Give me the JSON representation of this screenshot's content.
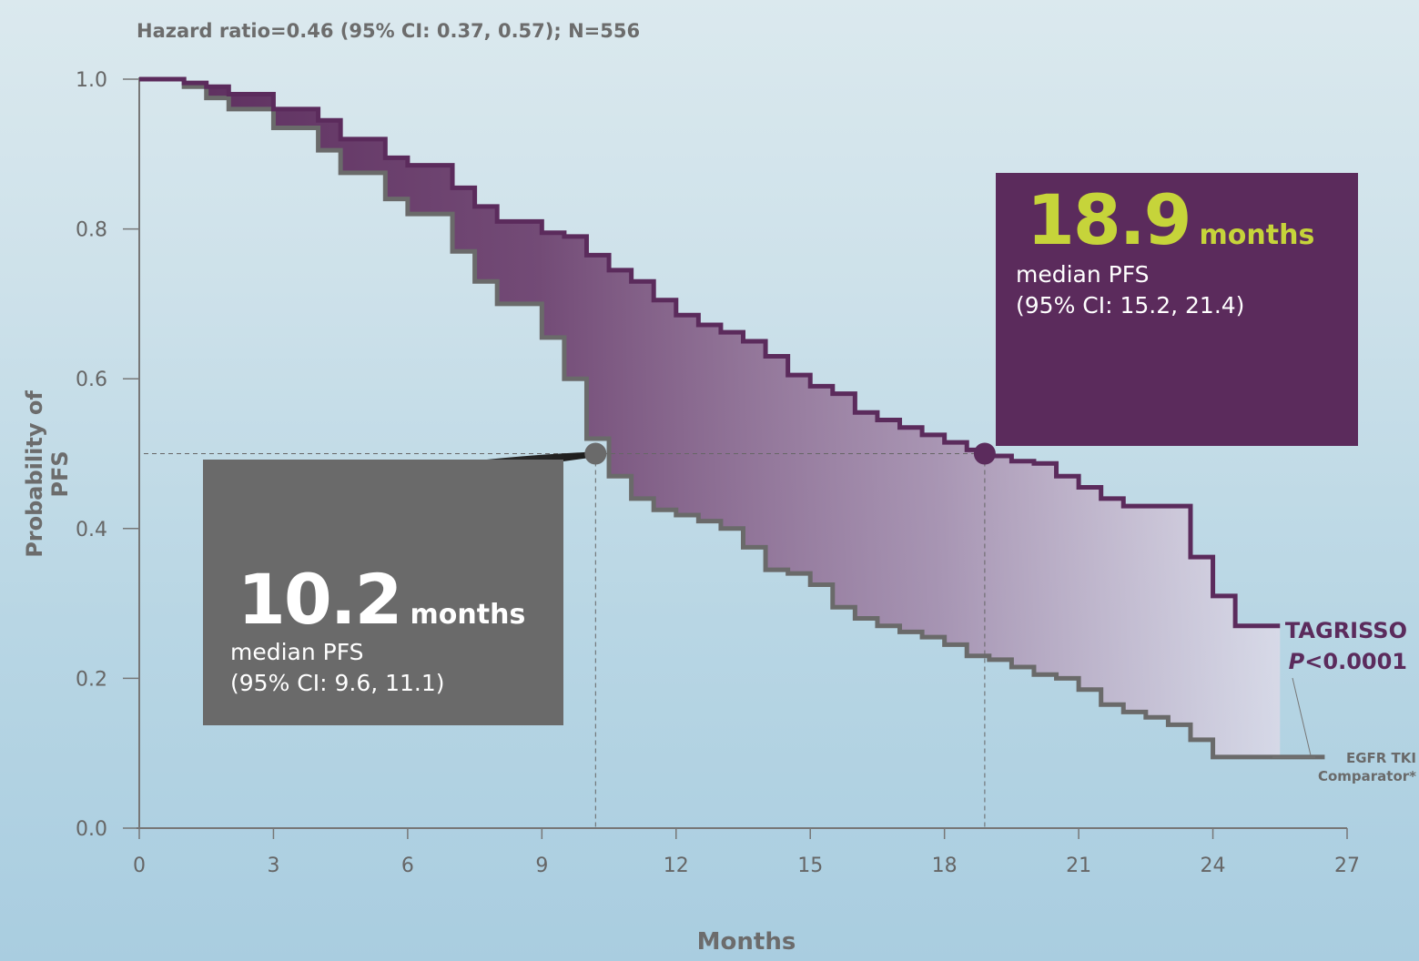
{
  "subtitle": "Hazard ratio=0.46 (95% CI: 0.37, 0.57); N=556",
  "colors": {
    "tagrisso": "#5b2b5c",
    "comparator": "#6a6a6a",
    "highlight": "#c6d43a",
    "axis": "#777777"
  },
  "annotations": {
    "tagrisso": {
      "value": "18.9",
      "unit": "months",
      "label": "median PFS",
      "ci": "(95% CI: 15.2, 21.4)"
    },
    "comparator": {
      "value": "10.2",
      "unit": "months",
      "label": "median PFS",
      "ci": "(95% CI: 9.6, 11.1)"
    }
  },
  "legend": {
    "tagrisso_name": "TAGRISSO",
    "tagrisso_p_italic": "P",
    "tagrisso_p_rest": "<0.0001",
    "comparator_line1": "EGFR TKI",
    "comparator_line2": "Comparator*"
  },
  "chart_data": {
    "type": "line",
    "title": "Hazard ratio=0.46 (95% CI: 0.37, 0.57); N=556",
    "xlabel": "Months",
    "ylabel": "Probability of PFS",
    "xlim": [
      0,
      27
    ],
    "ylim": [
      0,
      1
    ],
    "xticks": [
      0,
      3,
      6,
      9,
      12,
      15,
      18,
      21,
      24,
      27
    ],
    "yticks": [
      "0.0",
      "0.2",
      "0.4",
      "0.6",
      "0.8",
      "1.0"
    ],
    "median_line_y": 0.5,
    "series": [
      {
        "name": "TAGRISSO",
        "median": 18.9,
        "x": [
          0,
          0.7,
          1.0,
          1.5,
          2.0,
          3.0,
          4.0,
          4.5,
          5.5,
          6.0,
          7.0,
          7.5,
          8.0,
          9.0,
          9.5,
          10.0,
          10.5,
          11.0,
          11.5,
          12.0,
          12.5,
          13.0,
          13.5,
          14.0,
          14.5,
          15.0,
          15.5,
          16.0,
          16.5,
          17.0,
          17.5,
          18.0,
          18.5,
          19.0,
          19.5,
          20.0,
          20.5,
          21.0,
          21.5,
          22.0,
          22.5,
          23.0,
          23.5,
          24.0,
          24.5,
          25.0,
          25.5
        ],
        "y": [
          1.0,
          1.0,
          0.995,
          0.99,
          0.98,
          0.96,
          0.945,
          0.92,
          0.895,
          0.885,
          0.855,
          0.83,
          0.81,
          0.795,
          0.79,
          0.765,
          0.745,
          0.73,
          0.705,
          0.685,
          0.672,
          0.662,
          0.65,
          0.63,
          0.605,
          0.59,
          0.58,
          0.555,
          0.545,
          0.535,
          0.525,
          0.515,
          0.505,
          0.497,
          0.49,
          0.487,
          0.47,
          0.455,
          0.44,
          0.43,
          0.43,
          0.43,
          0.362,
          0.31,
          0.27,
          0.27,
          0.27
        ]
      },
      {
        "name": "EGFR TKI Comparator*",
        "median": 10.2,
        "x": [
          0,
          0.5,
          1.0,
          1.5,
          2.0,
          3.0,
          4.0,
          4.5,
          5.5,
          6.0,
          7.0,
          7.5,
          8.0,
          9.0,
          9.5,
          10.0,
          10.5,
          11.0,
          11.5,
          12.0,
          12.5,
          13.0,
          13.5,
          14.0,
          14.5,
          15.0,
          15.5,
          16.0,
          16.5,
          17.0,
          17.5,
          18.0,
          18.5,
          19.0,
          19.5,
          20.0,
          20.5,
          21.0,
          21.5,
          22.0,
          22.5,
          23.0,
          23.5,
          24.0,
          24.5,
          25.0,
          25.5,
          26.0,
          26.5
        ],
        "y": [
          1.0,
          1.0,
          0.99,
          0.975,
          0.96,
          0.935,
          0.905,
          0.875,
          0.84,
          0.82,
          0.77,
          0.73,
          0.7,
          0.655,
          0.6,
          0.52,
          0.47,
          0.44,
          0.425,
          0.418,
          0.41,
          0.4,
          0.375,
          0.345,
          0.34,
          0.325,
          0.295,
          0.28,
          0.27,
          0.262,
          0.255,
          0.245,
          0.23,
          0.225,
          0.215,
          0.205,
          0.2,
          0.185,
          0.165,
          0.155,
          0.148,
          0.138,
          0.118,
          0.095,
          0.095,
          0.095,
          0.095,
          0.095,
          0.095
        ]
      }
    ]
  }
}
